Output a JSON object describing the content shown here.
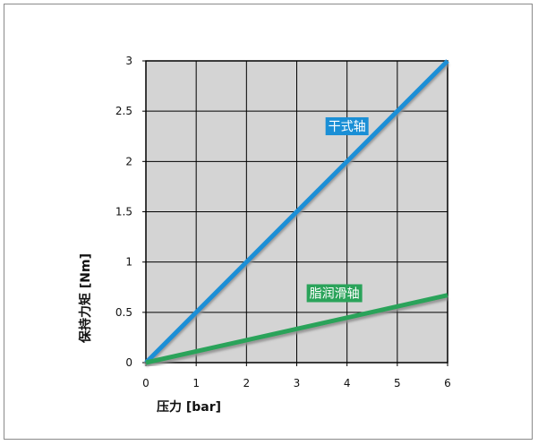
{
  "chart_data": {
    "type": "line",
    "xlabel": "压力 [bar]",
    "ylabel": "保持力矩 [Nm]",
    "xlim": [
      0,
      6
    ],
    "ylim": [
      0,
      3
    ],
    "x_ticks": [
      "0",
      "1",
      "2",
      "3",
      "4",
      "5",
      "6"
    ],
    "y_ticks": [
      "0",
      "0.5",
      "1",
      "1.5",
      "2",
      "2.5",
      "3"
    ],
    "grid": true,
    "plot_background": "#d4d4d4",
    "series": [
      {
        "name": "干式轴",
        "color": "#1a8fd6",
        "x": [
          0,
          6
        ],
        "y": [
          0,
          3
        ]
      },
      {
        "name": "脂润滑轴",
        "color": "#2aa35a",
        "x": [
          0,
          6
        ],
        "y": [
          0,
          0.67
        ]
      }
    ]
  }
}
